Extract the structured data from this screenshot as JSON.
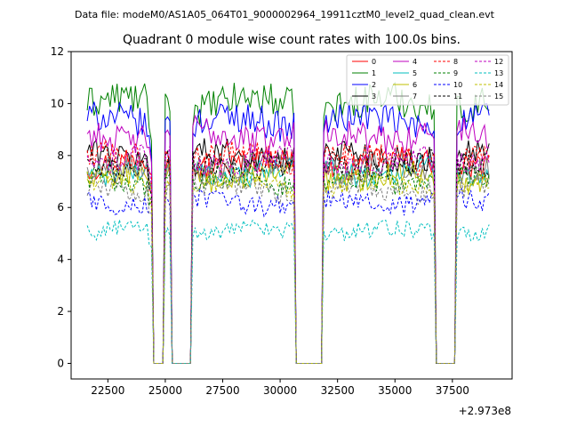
{
  "chart_data": {
    "type": "line",
    "suptitle": "Data file: modeM0/AS1A05_064T01_9000002964_19911cztM0_level2_quad_clean.evt",
    "title": "Quadrant 0 module wise count rates with 100.0s bins.",
    "xlabel": "",
    "ylabel": "",
    "x_offset_label": "+2.973e8",
    "xlim": [
      20900,
      40100
    ],
    "ylim": [
      -0.6,
      12
    ],
    "xticks": [
      22500,
      25000,
      27500,
      30000,
      32500,
      35000,
      37500
    ],
    "yticks": [
      0,
      2,
      4,
      6,
      8,
      10,
      12
    ],
    "x_tick_labels": [
      "22500",
      "25000",
      "27500",
      "30000",
      "32500",
      "35000",
      "37500"
    ],
    "y_tick_labels": [
      "0",
      "2",
      "4",
      "6",
      "8",
      "10",
      "12"
    ],
    "bin_seconds": 100,
    "x_start": 21600,
    "x_end": 39100,
    "gaps": [
      [
        24500,
        24900
      ],
      [
        25300,
        26100
      ],
      [
        30700,
        31800
      ],
      [
        36800,
        37600
      ]
    ],
    "legend_location": "upper right",
    "series": [
      {
        "name": "0",
        "color": "#ff0000",
        "dashed": false,
        "base": 7.7
      },
      {
        "name": "1",
        "color": "#008000",
        "dashed": false,
        "base": 10.0
      },
      {
        "name": "2",
        "color": "#0000ff",
        "dashed": false,
        "base": 9.3
      },
      {
        "name": "3",
        "color": "#000000",
        "dashed": false,
        "base": 8.0
      },
      {
        "name": "4",
        "color": "#bf00bf",
        "dashed": false,
        "base": 8.8
      },
      {
        "name": "5",
        "color": "#00bfbf",
        "dashed": false,
        "base": 7.4
      },
      {
        "name": "6",
        "color": "#bfbf00",
        "dashed": false,
        "base": 7.2
      },
      {
        "name": "7",
        "color": "#808080",
        "dashed": false,
        "base": 7.5
      },
      {
        "name": "8",
        "color": "#ff0000",
        "dashed": true,
        "base": 7.9
      },
      {
        "name": "9",
        "color": "#008000",
        "dashed": true,
        "base": 7.0
      },
      {
        "name": "10",
        "color": "#0000ff",
        "dashed": true,
        "base": 6.2
      },
      {
        "name": "11",
        "color": "#000000",
        "dashed": true,
        "base": 7.6
      },
      {
        "name": "12",
        "color": "#bf00bf",
        "dashed": true,
        "base": 7.8
      },
      {
        "name": "13",
        "color": "#00bfbf",
        "dashed": true,
        "base": 5.1
      },
      {
        "name": "14",
        "color": "#bfbf00",
        "dashed": true,
        "base": 6.9
      },
      {
        "name": "15",
        "color": "#808080",
        "dashed": true,
        "base": 6.7
      }
    ]
  }
}
